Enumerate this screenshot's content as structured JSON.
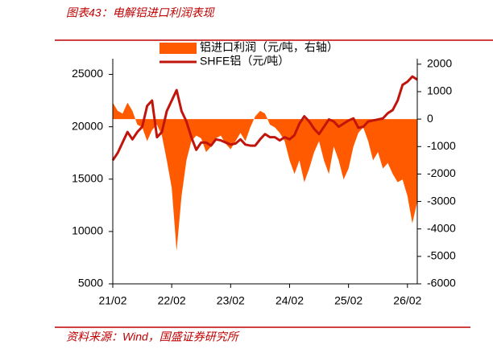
{
  "chart_data": {
    "type": "line",
    "title": "图表43：电解铝进口利润表现",
    "source": "资料来源：Wind，国盛证券研究所",
    "categories": [
      "21/02",
      null,
      null,
      null,
      null,
      null,
      null,
      null,
      null,
      null,
      null,
      null,
      "22/02",
      null,
      null,
      null,
      null,
      null,
      null,
      null,
      null,
      null,
      null,
      null,
      "23/02",
      null,
      null,
      null,
      null,
      null,
      null,
      null,
      null,
      null,
      null,
      null,
      "24/02",
      null,
      null,
      null,
      null,
      null,
      null,
      null,
      null,
      null,
      null,
      null,
      "25/02",
      null,
      null,
      null,
      null,
      null,
      null,
      null,
      null,
      null,
      null,
      null,
      "26/02",
      null,
      null
    ],
    "ylim": [
      5000,
      26500
    ],
    "yticks": [
      5000,
      10000,
      15000,
      20000,
      25000
    ],
    "y2lim": [
      -6000,
      2200
    ],
    "y2ticks": [
      -6000,
      -5000,
      -4000,
      -3000,
      -2000,
      -1000,
      0,
      1000,
      2000
    ],
    "grid": false,
    "legend": "top",
    "series": [
      {
        "name": "铝进口利润（元/吨，右轴）",
        "type": "area",
        "axis": "y2",
        "color": "#ff5a00",
        "values": [
          600,
          300,
          200,
          600,
          300,
          -200,
          -300,
          -800,
          -400,
          -200,
          -600,
          -1500,
          -2500,
          -4800,
          -2800,
          -1500,
          -800,
          -600,
          -700,
          -1200,
          -1000,
          -700,
          -600,
          -900,
          -1100,
          -800,
          -500,
          -800,
          -300,
          100,
          300,
          200,
          -200,
          -300,
          -500,
          -800,
          -1500,
          -2000,
          -1500,
          -2300,
          -1800,
          -1200,
          -800,
          -1500,
          -2000,
          -1000,
          -1500,
          -2200,
          -1800,
          -1000,
          -500,
          -300,
          -800,
          -1500,
          -1200,
          -1800,
          -1600,
          -2000,
          -2300,
          -2200,
          -2800,
          -3800,
          -3000
        ]
      },
      {
        "name": "SHFE铝（元/吨）",
        "type": "line",
        "color": "#c0140c",
        "values": [
          16800,
          17500,
          18500,
          19500,
          18800,
          19500,
          20000,
          22000,
          22500,
          19000,
          19500,
          21500,
          22500,
          23500,
          21500,
          20500,
          19000,
          17800,
          18500,
          18500,
          18200,
          18800,
          18700,
          18500,
          18300,
          18400,
          18800,
          18300,
          18200,
          18200,
          18800,
          19300,
          19000,
          19000,
          18700,
          19000,
          18800,
          19200,
          20300,
          21000,
          20500,
          19800,
          19300,
          20000,
          20700,
          20500,
          20000,
          20300,
          20600,
          20800,
          19900,
          20000,
          20500,
          20600,
          20700,
          20800,
          21300,
          21600,
          22500,
          24000,
          24300,
          24800,
          24500
        ]
      }
    ]
  }
}
